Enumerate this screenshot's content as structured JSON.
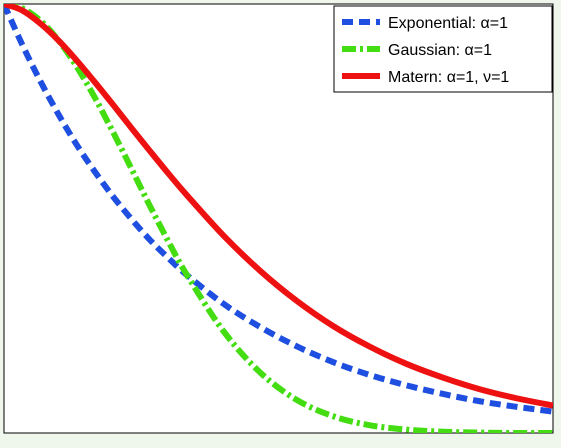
{
  "chart_data": {
    "type": "line",
    "title": "",
    "xlabel": "",
    "ylabel": "",
    "xlim": [
      0,
      3
    ],
    "ylim": [
      0,
      1
    ],
    "grid": false,
    "axis_ticks_visible": false,
    "legend": {
      "position": "top-right",
      "entries": [
        "Exponential: α=1",
        "Gaussian: α=1",
        "Matern: α=1, ν=1"
      ]
    },
    "series": [
      {
        "name": "Exponential: α=1",
        "color": "#1f4fe0",
        "line_style": "dashed",
        "x": [
          0,
          0.1,
          0.2,
          0.3,
          0.4,
          0.5,
          0.6,
          0.7,
          0.8,
          0.9,
          1.0,
          1.2,
          1.4,
          1.6,
          1.8,
          2.0,
          2.2,
          2.4,
          2.6,
          2.8,
          3.0
        ],
        "values": [
          1.0,
          0.905,
          0.819,
          0.741,
          0.67,
          0.607,
          0.549,
          0.497,
          0.449,
          0.407,
          0.368,
          0.301,
          0.247,
          0.202,
          0.165,
          0.135,
          0.111,
          0.091,
          0.074,
          0.061,
          0.05
        ]
      },
      {
        "name": "Gaussian: α=1",
        "color": "#44dd11",
        "line_style": "dash-dot",
        "x": [
          0,
          0.1,
          0.2,
          0.3,
          0.4,
          0.5,
          0.6,
          0.7,
          0.8,
          0.9,
          1.0,
          1.2,
          1.4,
          1.6,
          1.8,
          2.0,
          2.2,
          2.4,
          2.6,
          2.8,
          3.0
        ],
        "values": [
          1.0,
          0.99,
          0.961,
          0.914,
          0.852,
          0.779,
          0.698,
          0.613,
          0.527,
          0.445,
          0.368,
          0.237,
          0.141,
          0.077,
          0.039,
          0.018,
          0.008,
          0.003,
          0.001,
          0.0,
          0.0
        ]
      },
      {
        "name": "Matern: α=1, ν=1",
        "color": "#ee1111",
        "line_style": "solid",
        "x": [
          0,
          0.1,
          0.2,
          0.3,
          0.4,
          0.5,
          0.6,
          0.7,
          0.8,
          0.9,
          1.0,
          1.2,
          1.4,
          1.6,
          1.8,
          2.0,
          2.2,
          2.4,
          2.6,
          2.8,
          3.0
        ],
        "values": [
          1.0,
          0.985,
          0.954,
          0.914,
          0.867,
          0.816,
          0.763,
          0.709,
          0.656,
          0.604,
          0.554,
          0.46,
          0.378,
          0.308,
          0.249,
          0.201,
          0.161,
          0.129,
          0.102,
          0.081,
          0.064
        ]
      }
    ]
  }
}
